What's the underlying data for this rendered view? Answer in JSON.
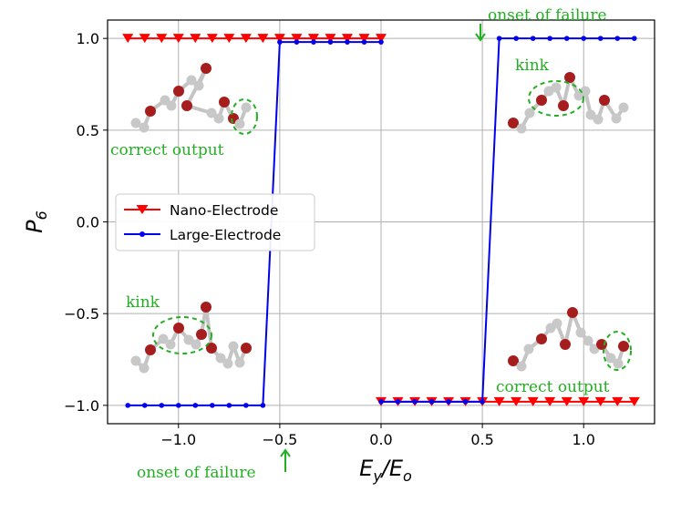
{
  "chart_data": {
    "type": "line",
    "title": "",
    "xlabel": {
      "main": "E",
      "sub1": "y",
      "slash": "/",
      "main2": "E",
      "sub2": "o"
    },
    "ylabel": {
      "main": "P",
      "sub": "6"
    },
    "xlim": [
      -1.35,
      1.35
    ],
    "ylim": [
      -1.1,
      1.1
    ],
    "xticks": [
      -1.0,
      -0.5,
      0.0,
      0.5,
      1.0
    ],
    "xtick_labels": [
      "−1.0",
      "−0.5",
      "0.0",
      "0.5",
      "1.0"
    ],
    "yticks": [
      -1.0,
      -0.5,
      0.0,
      0.5,
      1.0
    ],
    "ytick_labels": [
      "−1.0",
      "−0.5",
      "0.0",
      "0.5",
      "1.0"
    ],
    "grid": true,
    "legend_position": "center-left",
    "series": [
      {
        "name": "Nano-Electrode",
        "color": "#ff0000",
        "marker": "triangle-down",
        "segments": [
          {
            "x": [
              -1.25,
              -1.1667,
              -1.0833,
              -1.0,
              -0.9167,
              -0.8333,
              -0.75,
              -0.6667,
              -0.5833,
              -0.5,
              -0.4167,
              -0.3333,
              -0.25,
              -0.1667,
              -0.0833,
              -0.0
            ],
            "y": [
              1,
              1,
              1,
              1,
              1,
              1,
              1,
              1,
              1,
              1,
              1,
              1,
              1,
              1,
              1,
              1
            ]
          },
          {
            "x": [
              0.0,
              0.0833,
              0.1667,
              0.25,
              0.3333,
              0.4167,
              0.5,
              0.5833,
              0.6667,
              0.75,
              0.8333,
              0.9167,
              1.0,
              1.0833,
              1.1667,
              1.25
            ],
            "y": [
              -0.98,
              -0.98,
              -0.98,
              -0.98,
              -0.98,
              -0.98,
              -0.98,
              -0.98,
              -0.98,
              -0.98,
              -0.98,
              -0.98,
              -0.98,
              -0.98,
              -0.98,
              -0.98
            ]
          }
        ]
      },
      {
        "name": "Large-Electrode",
        "color": "#0000ee",
        "marker": "circle",
        "segments": [
          {
            "x": [
              -1.25,
              -1.1667,
              -1.0833,
              -1.0,
              -0.9167,
              -0.8333,
              -0.75,
              -0.6667,
              -0.5833,
              -0.5,
              -0.4167,
              -0.3333,
              -0.25,
              -0.1667,
              -0.0833,
              -0.0
            ],
            "y": [
              -1,
              -1,
              -1,
              -1,
              -1,
              -1,
              -1,
              -1,
              -1,
              0.98,
              0.98,
              0.98,
              0.98,
              0.98,
              0.98,
              0.98
            ]
          },
          {
            "x": [
              0.0,
              0.0833,
              0.1667,
              0.25,
              0.3333,
              0.4167,
              0.5,
              0.5833,
              0.6667,
              0.75,
              0.8333,
              0.9167,
              1.0,
              1.0833,
              1.1667,
              1.25
            ],
            "y": [
              -0.98,
              -0.98,
              -0.98,
              -0.98,
              -0.98,
              -0.98,
              -0.98,
              1,
              1,
              1,
              1,
              1,
              1,
              1,
              1,
              1
            ]
          }
        ]
      }
    ],
    "annotations": {
      "onset_top": "onset of failure",
      "onset_bottom": "onset of failure",
      "correct_top_left": "correct output",
      "correct_bottom_right": "correct output",
      "kink_top_right": "kink",
      "kink_bottom_left": "kink"
    },
    "annotation_color": "#22b022"
  }
}
